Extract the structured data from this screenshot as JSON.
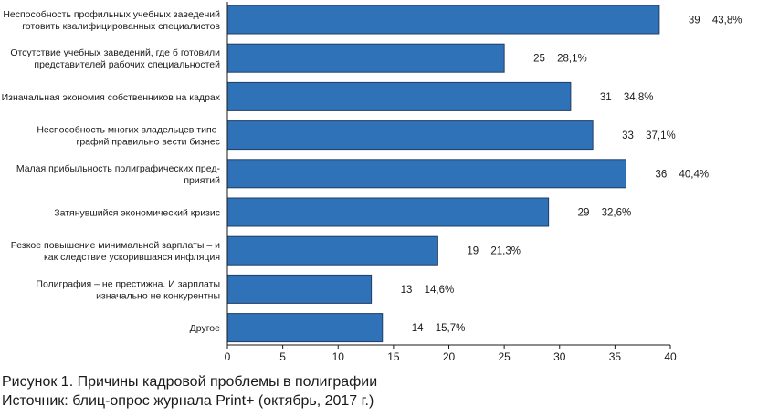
{
  "chart_data": {
    "type": "bar",
    "orientation": "horizontal",
    "categories": [
      [
        "Неспособность профильных учебных заведений",
        "готовить квалифицированных специалистов"
      ],
      [
        "Отсутствие учебных заведений, где б готовили",
        "представителей рабочих специальностей"
      ],
      [
        "Изначальная экономия собственников на кадрах"
      ],
      [
        "Неспособность многих владельцев типо-",
        "графий правильно вести бизнес"
      ],
      [
        "Малая прибыльность полиграфических пред-",
        "приятий"
      ],
      [
        "Затянувшийся экономический кризис"
      ],
      [
        "Резкое повышение минимальной зарплаты – и",
        "как следствие ускорившаяся инфляция"
      ],
      [
        "Полиграфия – не престижна. И зарплаты",
        "изначально не конкурентны"
      ],
      [
        "Другое"
      ]
    ],
    "values": [
      39,
      25,
      31,
      33,
      36,
      29,
      19,
      13,
      14
    ],
    "percent_labels": [
      "43,8%",
      "28,1%",
      "34,8%",
      "37,1%",
      "40,4%",
      "32,6%",
      "21,3%",
      "14,6%",
      "15,7%"
    ],
    "x_ticks": [
      0,
      5,
      10,
      15,
      20,
      25,
      30,
      35,
      40
    ],
    "xlim": [
      0,
      40
    ],
    "grid": false,
    "bar_color": "#2f72b8",
    "bar_edge_color": "#1f3f66"
  },
  "caption": {
    "figure_lead": "Рисунок 1.",
    "figure_text": " Причины кадровой проблемы в полиграфии",
    "source_lead": "Источник:",
    "source_text": " блиц-опрос журнала Print+ (октябрь, 2017 г.)"
  }
}
